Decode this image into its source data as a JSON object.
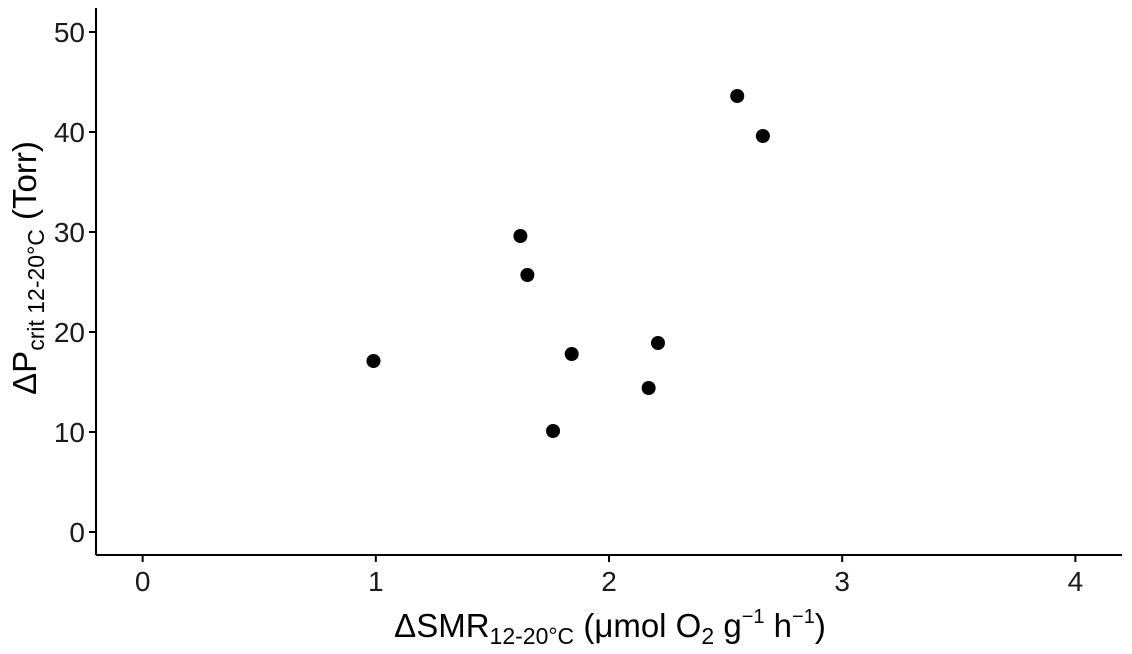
{
  "chart_data": {
    "type": "scatter",
    "xlabel": {
      "prefix": "ΔSMR",
      "subscript": "12-20°C",
      "unit_open": " (μmol O",
      "o2_subscript": "2",
      "unit_g": " g",
      "g_exp": "−1",
      "unit_h": " h",
      "h_exp": "−1",
      "unit_close": ")"
    },
    "ylabel": {
      "prefix": "ΔP",
      "subscript": "crit 12-20°C",
      "suffix": " (Torr)"
    },
    "xlim": [
      -0.2,
      4.2
    ],
    "ylim": [
      -2.3,
      52.4
    ],
    "x_ticks": [
      0,
      1,
      2,
      3,
      4
    ],
    "y_ticks": [
      0,
      10,
      20,
      30,
      40,
      50
    ],
    "points": [
      {
        "x": 0.99,
        "y": 17.1
      },
      {
        "x": 1.62,
        "y": 29.6
      },
      {
        "x": 1.65,
        "y": 25.7
      },
      {
        "x": 1.76,
        "y": 10.1
      },
      {
        "x": 1.84,
        "y": 17.8
      },
      {
        "x": 2.17,
        "y": 14.4
      },
      {
        "x": 2.21,
        "y": 18.9
      },
      {
        "x": 2.55,
        "y": 43.6
      },
      {
        "x": 2.66,
        "y": 39.6
      }
    ],
    "marker_color": "#000000",
    "grid": false
  }
}
